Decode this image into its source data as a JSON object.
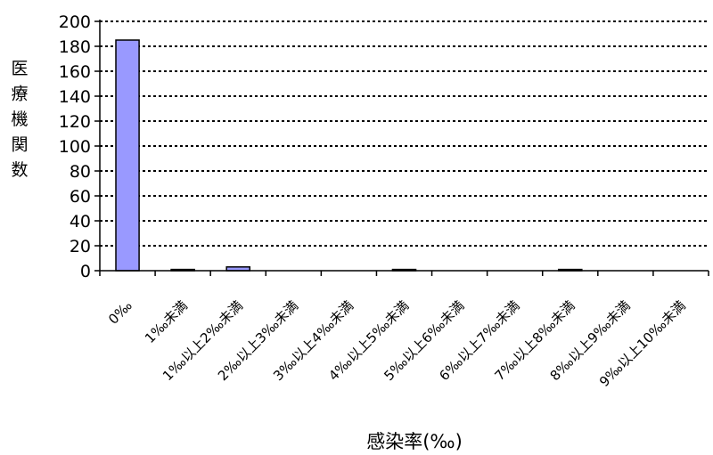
{
  "chart_data": {
    "type": "bar",
    "title": "",
    "xlabel": "感染率(‰)",
    "ylabel": "医療機関数",
    "ylim": [
      0,
      200
    ],
    "yticks": [
      0,
      20,
      40,
      60,
      80,
      100,
      120,
      140,
      160,
      180,
      200
    ],
    "grid": true,
    "legend": "none",
    "bar_color": "#9999ff",
    "categories": [
      "0‰",
      "1‰未満",
      "1‰以上2‰未満",
      "2‰以上3‰未満",
      "3‰以上4‰未満",
      "4‰以上5‰未満",
      "5‰以上6‰未満",
      "6‰以上7‰未満",
      "7‰以上8‰未満",
      "8‰以上9‰未満",
      "9‰以上10‰未満"
    ],
    "values": [
      185,
      1,
      3,
      0,
      0,
      1,
      0,
      0,
      1,
      0,
      0
    ]
  }
}
